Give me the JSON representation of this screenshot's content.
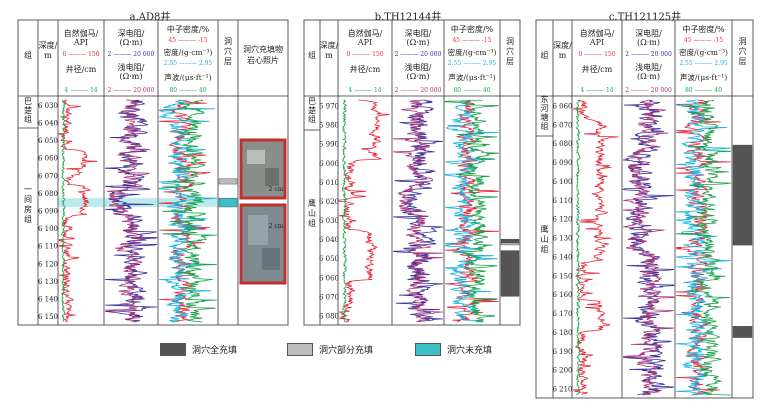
{
  "panels": [
    {
      "title": "a.AD8井",
      "head": {
        "zu": "组",
        "depth": "深度/\nm",
        "gr": "自然伽马/\nAPI",
        "gr_range": "0 ——— 150",
        "cal": "井径/cm",
        "cal_range": "4 ——— 14",
        "rd": "深电阻/\n(Ω·m)",
        "rd_range": "2 ——— 20 000",
        "rs": "浅电阻/\n(Ω·m)",
        "rs_range": "2 ——— 20 000",
        "cnl": "中子密度/%",
        "cnl_range": "45 ——— -15",
        "den": "密度/(g·cm⁻³)",
        "den_range": "2.55 ——— 2.95",
        "ac": "声波/(μs·ft⁻¹)",
        "ac_range": "80 ——— 40",
        "cave": "洞穴层",
        "photo": "洞穴充填物\n岩心照片"
      },
      "formations": [
        "巴\n楚\n组",
        "一\n间\n房\n组"
      ],
      "depths": [
        "6 030",
        "6 040",
        "6 050",
        "6 060",
        "6 070",
        "6 080",
        "6 090",
        "6 100",
        "6 110",
        "6 120",
        "6 130",
        "6 140",
        "6 150"
      ],
      "scale_labels": [
        "2 cm",
        "2 cm"
      ]
    },
    {
      "title": "b.TH12144井",
      "head": {
        "zu": "组",
        "depth": "深度/\nm",
        "gr": "自然伽马/\nAPI",
        "gr_range": "0 ——— 150",
        "cal": "井径/cm",
        "cal_range": "4 ——— 14",
        "rd": "深电阻/\n(Ω·m)",
        "rd_range": "2 ——— 20 000",
        "rs": "浅电阻/\n(Ω·m)",
        "rs_range": "2 ——— 20 000",
        "cnl": "中子密度/%",
        "cnl_range": "45 ——— -15",
        "den": "密度/(g·cm⁻³)",
        "den_range": "2.55 ——— 2.95",
        "ac": "声波/(μs·ft⁻¹)",
        "ac_range": "80 ——— 40",
        "cave": "洞穴层"
      },
      "formations": [
        "巴\n楚\n组",
        "鹰\n山\n组"
      ],
      "depths": [
        "5 970",
        "5 980",
        "5 990",
        "6 000",
        "6 010",
        "6 020",
        "6 030",
        "6 040",
        "6 050",
        "6 060",
        "6 070",
        "6 080"
      ]
    },
    {
      "title": "c.TH121125井",
      "head": {
        "zu": "组",
        "depth": "深度/\nm",
        "gr": "自然伽马/\nAPI",
        "gr_range": "0 ——— 150",
        "cal": "井径/cm",
        "cal_range": "4 ——— 14",
        "rd": "深电阻/\n(Ω·m)",
        "rd_range": "2 ——— 20 000",
        "rs": "浅电阻/\n(Ω·m)",
        "rs_range": "2 ——— 20 000",
        "cnl": "中子密度/%",
        "cnl_range": "45 ——— -15",
        "den": "密度/(g·cm⁻³)",
        "den_range": "2.55 ——— 2.95",
        "ac": "声波/(μs·ft⁻¹)",
        "ac_range": "80 ——— 40",
        "cave": "洞穴层"
      },
      "formations": [
        "东\n河\n塘\n组",
        "鹰\n山\n组"
      ],
      "depths": [
        "6 060",
        "6 070",
        "6 080",
        "6 090",
        "6 100",
        "6 110",
        "6 120",
        "6 130",
        "6 140",
        "6 150",
        "6 160",
        "6 170",
        "6 180",
        "6 190",
        "6 200",
        "6 210"
      ]
    }
  ],
  "legend": [
    {
      "label": "洞穴全充填",
      "color": "#555555"
    },
    {
      "label": "洞穴部分充填",
      "color": "#bbbbbb"
    },
    {
      "label": "洞穴未充填",
      "color": "#3cc0c8"
    }
  ],
  "chart_data": {
    "type": "line",
    "series": [
      {
        "name": "自然伽马",
        "unit": "API",
        "range": [
          0,
          150
        ],
        "color": "#e8283a"
      },
      {
        "name": "井径",
        "unit": "cm",
        "range": [
          4,
          14
        ],
        "color": "#1aa04a"
      },
      {
        "name": "深电阻",
        "unit": "Ω·m",
        "range": [
          2,
          20000
        ],
        "color": "#3a2e9c",
        "scale": "log"
      },
      {
        "name": "浅电阻",
        "unit": "Ω·m",
        "range": [
          2,
          20000
        ],
        "color": "#a8347a",
        "scale": "log"
      },
      {
        "name": "中子密度",
        "unit": "%",
        "range": [
          45,
          -15
        ],
        "color": "#e8283a"
      },
      {
        "name": "密度",
        "unit": "g·cm⁻³",
        "range": [
          2.55,
          2.95
        ],
        "color": "#18b4e0"
      },
      {
        "name": "声波",
        "unit": "μs·ft⁻¹",
        "range": [
          80,
          40
        ],
        "color": "#1aa04a"
      }
    ],
    "wells": [
      {
        "name": "AD8",
        "depth_range": [
          6025,
          6155
        ],
        "caves": [
          {
            "top": 6072,
            "bottom": 6075,
            "type": "partial"
          },
          {
            "top": 6083,
            "bottom": 6088,
            "type": "unfilled"
          }
        ]
      },
      {
        "name": "TH12144",
        "depth_range": [
          5965,
          6085
        ],
        "caves": [
          {
            "top": 6040,
            "bottom": 6042,
            "type": "full"
          },
          {
            "top": 6042,
            "bottom": 6043,
            "type": "partial"
          },
          {
            "top": 6046,
            "bottom": 6070,
            "type": "full"
          }
        ]
      },
      {
        "name": "TH121125",
        "depth_range": [
          6055,
          6215
        ],
        "caves": [
          {
            "top": 6081,
            "bottom": 6134,
            "type": "full"
          },
          {
            "top": 6177,
            "bottom": 6183,
            "type": "full"
          }
        ]
      }
    ]
  }
}
